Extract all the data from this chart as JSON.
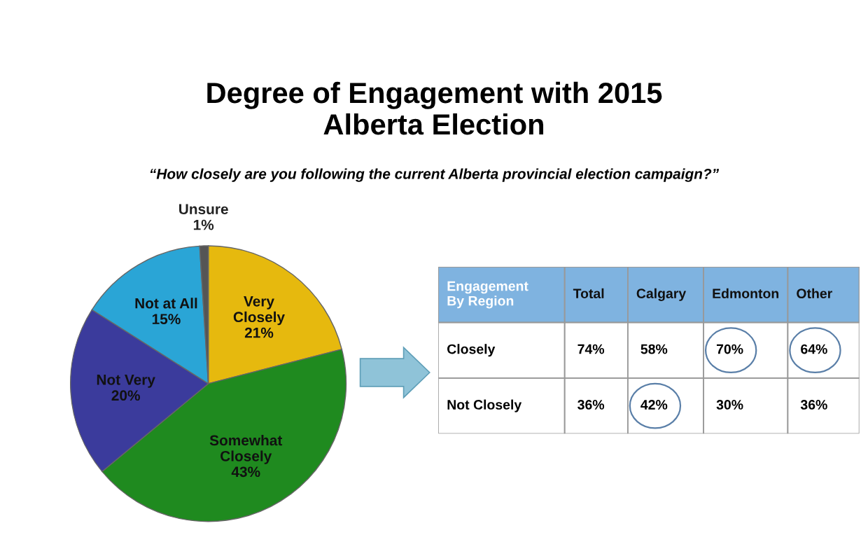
{
  "chart_data": [
    {
      "type": "pie",
      "title": "Degree of Engagement with 2015\nAlberta Election",
      "subtitle": "“How closely are you following the current Alberta provincial election campaign?”",
      "categories": [
        "Very\nClosely",
        "Somewhat\nClosely",
        "Not Very",
        "Not at All",
        "Unsure"
      ],
      "values": [
        21,
        43,
        20,
        15,
        1
      ],
      "colors": [
        "#e6b90e",
        "#1f8a1f",
        "#3b3b9c",
        "#2aa5d6",
        "#555555"
      ],
      "value_labels": [
        "21%",
        "43%",
        "20%",
        "15%",
        "1%"
      ]
    },
    {
      "type": "other",
      "categories": [
        "Engagement\nBy Region",
        "Total",
        "Calgary",
        "Edmonton",
        "Other"
      ],
      "y_categories": [
        "Closely",
        "Not Closely"
      ],
      "cell_labels": [
        [
          "74%",
          "58%",
          "70%",
          "64%"
        ],
        [
          "36%",
          "42%",
          "30%",
          "36%"
        ]
      ]
    }
  ]
}
